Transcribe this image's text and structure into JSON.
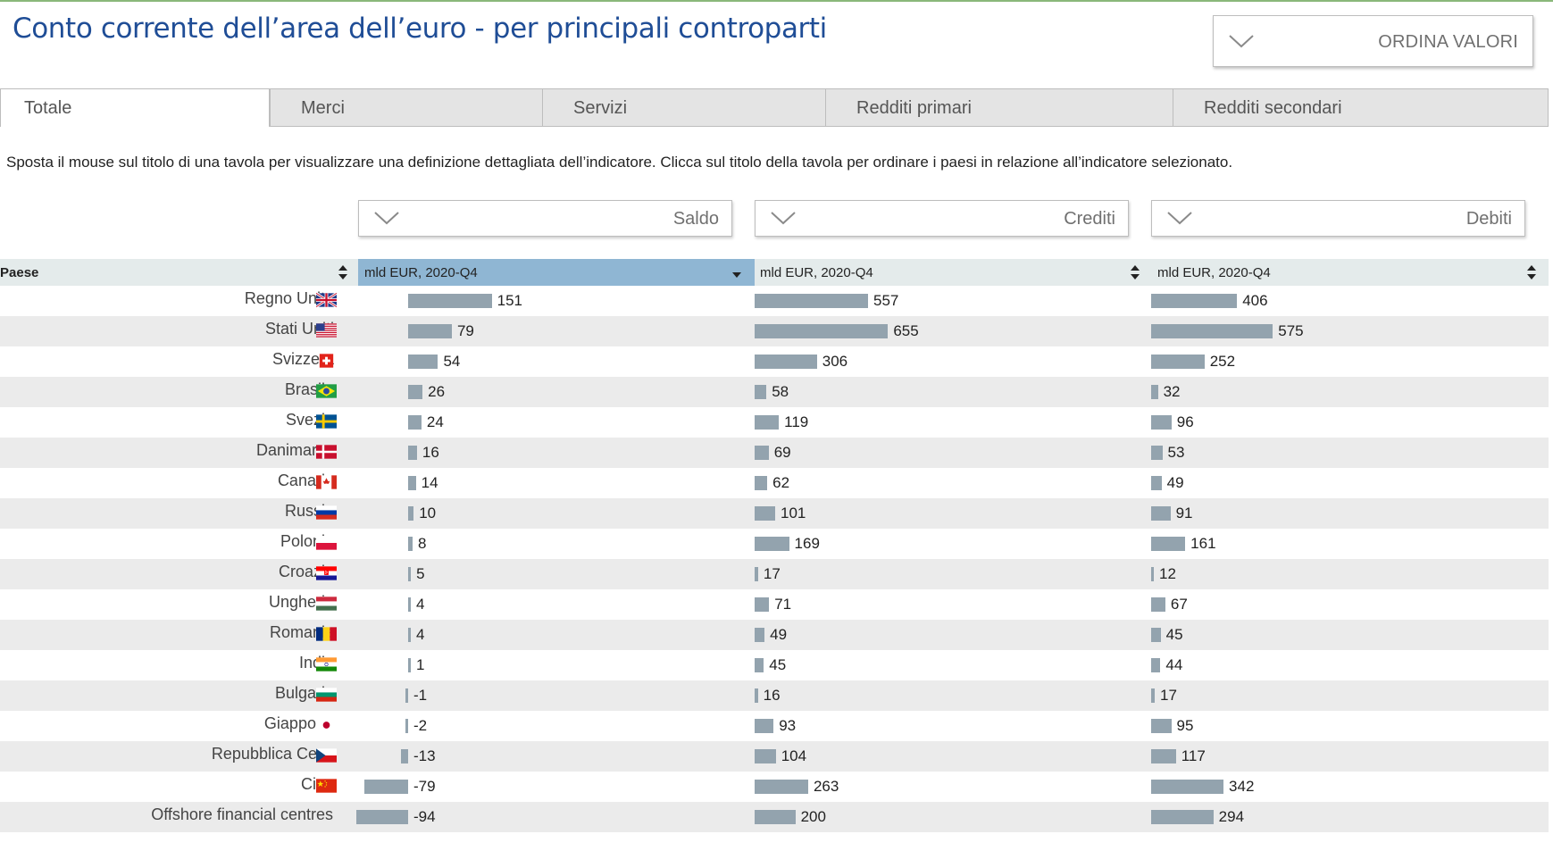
{
  "header": {
    "title": "Conto corrente dell’area dell’euro - per principali controparti",
    "sort_button": "ORDINA VALORI"
  },
  "tabs": [
    {
      "label": "Totale",
      "active": true
    },
    {
      "label": "Merci",
      "active": false
    },
    {
      "label": "Servizi",
      "active": false
    },
    {
      "label": "Redditi primari",
      "active": false
    },
    {
      "label": "Redditi secondari",
      "active": false
    }
  ],
  "hint": "Sposta il mouse sul titolo di una tavola per visualizzare una definizione dettagliata dell’indicatore. Clicca sul titolo della tavola per ordinare i paesi in relazione all’indicatore selezionato.",
  "indicators": [
    "Saldo",
    "Crediti",
    "Debiti"
  ],
  "table_header": {
    "country": "Paese",
    "columns": [
      "mld EUR, 2020-Q4",
      "mld EUR, 2020-Q4",
      "mld EUR, 2020-Q4"
    ]
  },
  "colors": {
    "bar": "#93a3ae",
    "title": "#1f4d96",
    "selected_header": "#8fb6d3"
  },
  "chart_data": {
    "type": "bar",
    "unit": "mld EUR, 2020-Q4",
    "categories": [
      "Regno Unito",
      "Stati Uniti",
      "Svizzera",
      "Brasile",
      "Svezia",
      "Danimarca",
      "Canada",
      "Russia",
      "Polonia",
      "Croazia",
      "Ungheria",
      "Romania",
      "India",
      "Bulgaria",
      "Giappone",
      "Repubblica Ceca",
      "Cina",
      "Offshore financial centres"
    ],
    "flags": [
      "uk-flag-icon",
      "us-flag-icon",
      "ch-flag-icon",
      "br-flag-icon",
      "se-flag-icon",
      "dk-flag-icon",
      "ca-flag-icon",
      "ru-flag-icon",
      "pl-flag-icon",
      "hr-flag-icon",
      "hu-flag-icon",
      "ro-flag-icon",
      "in-flag-icon",
      "bg-flag-icon",
      "jp-flag-icon",
      "cz-flag-icon",
      "cn-flag-icon",
      ""
    ],
    "series": [
      {
        "name": "Saldo",
        "values": [
          151,
          79,
          54,
          26,
          24,
          16,
          14,
          10,
          8,
          5,
          4,
          4,
          1,
          -1,
          -2,
          -13,
          -79,
          -94
        ]
      },
      {
        "name": "Crediti",
        "values": [
          557,
          655,
          306,
          58,
          119,
          69,
          62,
          101,
          169,
          17,
          71,
          49,
          45,
          16,
          93,
          104,
          263,
          200
        ]
      },
      {
        "name": "Debiti",
        "values": [
          406,
          575,
          252,
          32,
          96,
          53,
          49,
          91,
          161,
          12,
          67,
          45,
          44,
          17,
          95,
          117,
          342,
          294
        ]
      }
    ]
  }
}
